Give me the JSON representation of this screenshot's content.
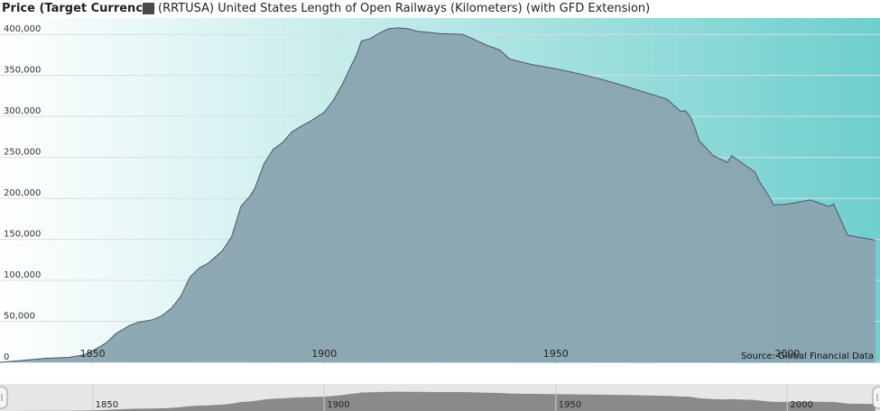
{
  "legend": {
    "title": "Price (Target Currency)",
    "series_label": "(RRTUSA) United States Length of Open Railways (Kilometers) (with GFD Extension)",
    "swatch_color": "#4a4a4a"
  },
  "source": "Source: Global Financial Data",
  "colors": {
    "area_fill": "#8aa4b0",
    "line": "#4a5860",
    "bg_start": "#ffffff",
    "bg_end": "#6ecfcd",
    "navigator_fill": "#8a8a8a",
    "navigator_bg": "#e6e6e6"
  },
  "chart_data": {
    "type": "area",
    "title": "",
    "xlabel": "",
    "ylabel": "",
    "xlim": [
      1830,
      2020
    ],
    "ylim": [
      0,
      420000
    ],
    "yticks": [
      0,
      50000,
      100000,
      150000,
      200000,
      250000,
      300000,
      350000,
      400000
    ],
    "ytick_labels": [
      "0",
      "50,000",
      "100,000",
      "150,000",
      "200,000",
      "250,000",
      "300,000",
      "350,000",
      "400,000"
    ],
    "xticks": [
      1850,
      1900,
      1950,
      2000
    ],
    "xtick_labels": [
      "1850",
      "1900",
      "1950",
      "2000"
    ],
    "grid": true,
    "series": [
      {
        "x": [
          1830,
          1835,
          1840,
          1845,
          1848,
          1850,
          1853,
          1855,
          1858,
          1860,
          1863,
          1865,
          1867,
          1869,
          1871,
          1873,
          1875,
          1878,
          1880,
          1882,
          1884,
          1885,
          1887,
          1889,
          1891,
          1893,
          1895,
          1897,
          1900,
          1902,
          1904,
          1906,
          1907,
          1908,
          1910,
          1912,
          1914,
          1916,
          1918,
          1920,
          1925,
          1930,
          1935,
          1938,
          1940,
          1945,
          1950,
          1955,
          1960,
          1965,
          1970,
          1974,
          1975,
          1977,
          1978,
          1979,
          1980,
          1981,
          1984,
          1987,
          1988,
          1990,
          1993,
          1994,
          1996,
          1997,
          2000,
          2005,
          2008,
          2009,
          2010,
          2013,
          2016,
          2019
        ],
        "values": [
          0,
          2500,
          5000,
          6000,
          9000,
          14000,
          24000,
          35000,
          45000,
          49000,
          52000,
          57000,
          66000,
          80000,
          104000,
          115000,
          121000,
          136000,
          153000,
          190000,
          203000,
          212000,
          242000,
          260000,
          268000,
          281000,
          288000,
          294000,
          305000,
          320000,
          340000,
          364000,
          375000,
          392000,
          395000,
          402000,
          407000,
          408000,
          407000,
          404000,
          401000,
          400000,
          387000,
          381000,
          370000,
          363000,
          358000,
          352000,
          345000,
          337000,
          328000,
          321000,
          316000,
          306000,
          307000,
          300000,
          287000,
          270000,
          252000,
          244000,
          252000,
          244000,
          232000,
          220000,
          203000,
          192000,
          193000,
          198000,
          192000,
          190000,
          193000,
          155000,
          152000,
          149000
        ]
      }
    ],
    "navigator": {
      "xticks": [
        1850,
        1900,
        1950,
        2000
      ],
      "xtick_labels": [
        "1850",
        "1900",
        "1950",
        "2000"
      ]
    }
  }
}
